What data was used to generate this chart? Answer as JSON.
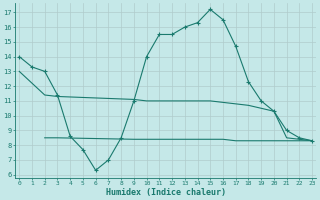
{
  "xlabel": "Humidex (Indice chaleur)",
  "bg_color": "#c5e8e8",
  "grid_color": "#b0cccc",
  "line_color": "#1a7a6e",
  "x_min": -0.3,
  "x_max": 23.3,
  "ylim": [
    5.8,
    17.6
  ],
  "yticks": [
    6,
    7,
    8,
    9,
    10,
    11,
    12,
    13,
    14,
    15,
    16,
    17
  ],
  "xticks": [
    0,
    1,
    2,
    3,
    4,
    5,
    6,
    7,
    8,
    9,
    10,
    11,
    12,
    13,
    14,
    15,
    16,
    17,
    18,
    19,
    20,
    21,
    22,
    23
  ],
  "series1_x": [
    0,
    1,
    2,
    3,
    4,
    5,
    6,
    7,
    8,
    9,
    10,
    11,
    12,
    13,
    14,
    15,
    16,
    17,
    18,
    19,
    20,
    21,
    22,
    23
  ],
  "series1_y": [
    14.0,
    13.3,
    13.0,
    11.4,
    8.6,
    7.7,
    6.3,
    7.0,
    8.5,
    11.0,
    14.0,
    15.5,
    15.5,
    16.0,
    16.3,
    17.2,
    16.5,
    14.7,
    12.3,
    11.0,
    10.3,
    9.0,
    8.5,
    8.3
  ],
  "series2_x": [
    0,
    2,
    3,
    9,
    10,
    11,
    12,
    13,
    14,
    15,
    16,
    17,
    18,
    19,
    20,
    21,
    22,
    23
  ],
  "series2_y": [
    13.0,
    11.4,
    11.3,
    11.1,
    11.0,
    11.0,
    11.0,
    11.0,
    11.0,
    11.0,
    10.9,
    10.8,
    10.7,
    10.5,
    10.3,
    8.5,
    8.4,
    8.3
  ],
  "series3_x": [
    2,
    3,
    9,
    10,
    11,
    12,
    13,
    14,
    15,
    16,
    17,
    18,
    19,
    20,
    21,
    22,
    23
  ],
  "series3_y": [
    8.5,
    8.5,
    8.4,
    8.4,
    8.4,
    8.4,
    8.4,
    8.4,
    8.4,
    8.4,
    8.3,
    8.3,
    8.3,
    8.3,
    8.3,
    8.3,
    8.3
  ]
}
